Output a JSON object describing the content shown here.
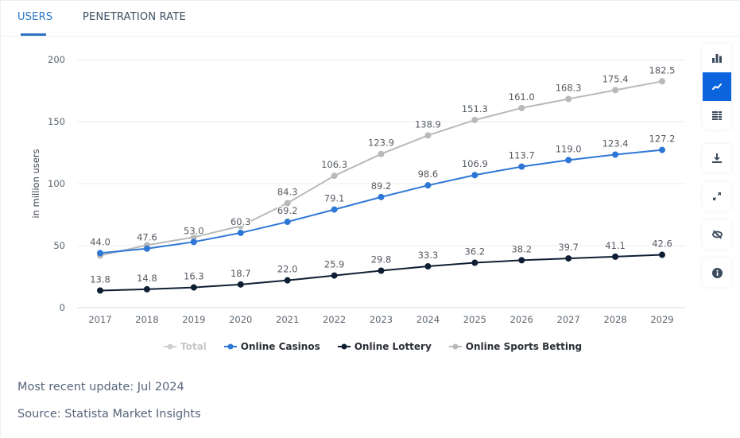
{
  "tabs": [
    {
      "label": "USERS",
      "active": true
    },
    {
      "label": "PENETRATION RATE",
      "active": false
    }
  ],
  "toolbar": {
    "groups": [
      [
        {
          "icon": "bar-chart-icon",
          "label": "Bar chart",
          "active": false
        },
        {
          "icon": "line-chart-icon",
          "label": "Line chart",
          "active": true
        },
        {
          "icon": "table-icon",
          "label": "Table",
          "active": false
        }
      ],
      [
        {
          "icon": "download-icon",
          "label": "Download",
          "active": false
        }
      ],
      [
        {
          "icon": "expand-icon",
          "label": "Fullscreen",
          "active": false
        }
      ],
      [
        {
          "icon": "eye-slash-icon",
          "label": "Hide",
          "active": false
        }
      ],
      [
        {
          "icon": "info-icon",
          "label": "Info",
          "active": false
        }
      ]
    ]
  },
  "colors": {
    "accent": "#0b63de",
    "casinos": "#2d77d6",
    "lottery": "#0f1f33",
    "sports": "#b9b9b9",
    "total_hidden": "#cfcfcf"
  },
  "chart_data": {
    "type": "line",
    "title": "",
    "xlabel": "",
    "ylabel": "in million users",
    "ylim": [
      0,
      200
    ],
    "yticks": [
      0,
      50,
      100,
      150,
      200
    ],
    "grid": true,
    "legend_position": "bottom",
    "categories": [
      "2017",
      "2018",
      "2019",
      "2020",
      "2021",
      "2022",
      "2023",
      "2024",
      "2025",
      "2026",
      "2027",
      "2028",
      "2029"
    ],
    "series": [
      {
        "name": "Total",
        "visible": false,
        "color": "#cfcfcf",
        "values": []
      },
      {
        "name": "Online Casinos",
        "visible": true,
        "color": "#2d77d6",
        "values": [
          44.0,
          47.6,
          53.0,
          60.3,
          69.2,
          79.1,
          89.2,
          98.6,
          106.9,
          113.7,
          119.0,
          123.4,
          127.2
        ],
        "labels_shown": [
          true,
          true,
          true,
          true,
          true,
          true,
          true,
          true,
          true,
          true,
          true,
          true,
          true
        ]
      },
      {
        "name": "Online Lottery",
        "visible": true,
        "color": "#0f1f33",
        "values": [
          13.8,
          14.8,
          16.3,
          18.7,
          22.0,
          25.9,
          29.8,
          33.3,
          36.2,
          38.2,
          39.7,
          41.1,
          42.6
        ],
        "labels_shown": [
          true,
          true,
          true,
          true,
          true,
          true,
          true,
          true,
          true,
          true,
          true,
          true,
          true
        ]
      },
      {
        "name": "Online Sports Betting",
        "visible": true,
        "color": "#b9b9b9",
        "values": [
          42,
          50.4,
          56.8,
          65.8,
          84.3,
          106.3,
          123.9,
          138.9,
          151.3,
          161.0,
          168.3,
          175.4,
          182.5
        ],
        "labels_shown": [
          false,
          false,
          false,
          false,
          true,
          true,
          true,
          true,
          true,
          true,
          true,
          true,
          true
        ]
      }
    ]
  },
  "footer": {
    "update": "Most recent update: Jul 2024",
    "source": "Source: Statista Market Insights"
  }
}
